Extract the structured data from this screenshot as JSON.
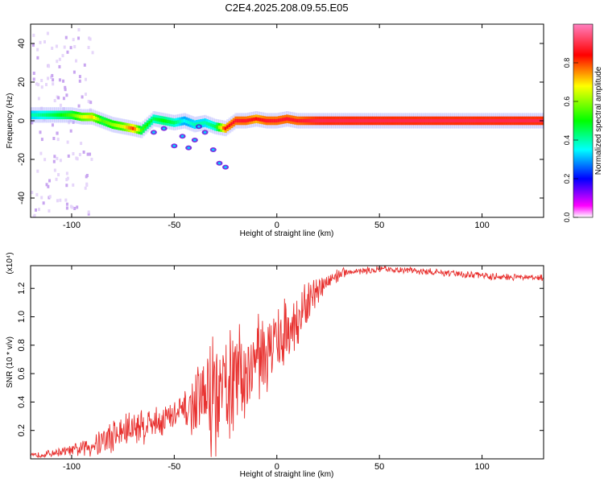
{
  "figure_title": "C2E4.2025.208.09.55.E05",
  "chart_data": [
    {
      "type": "heatmap",
      "xlabel": "Height of straight line (km)",
      "ylabel": "Frequency (Hz)",
      "xlim": [
        -120,
        130
      ],
      "ylim": [
        -50,
        50
      ],
      "x_ticks": [
        -100,
        -50,
        0,
        50,
        100
      ],
      "y_ticks": [
        -40,
        -20,
        0,
        20,
        40
      ],
      "colorbar": {
        "label": "Normalized spectral amplitude",
        "range": [
          0,
          1
        ],
        "ticks": [
          "0.0",
          "0.2",
          "0.4",
          "0.6",
          "0.8"
        ],
        "colors": [
          "#ffffff",
          "#ff00ff",
          "#0000ff",
          "#00ffff",
          "#00ff00",
          "#ffff00",
          "#ff0000",
          "#ff80c0"
        ]
      },
      "ridge": {
        "x": [
          -118,
          -110,
          -100,
          -95,
          -90,
          -85,
          -80,
          -75,
          -70,
          -66,
          -60,
          -55,
          -50,
          -45,
          -40,
          -35,
          -30,
          -25,
          -20,
          -15,
          -10,
          -5,
          0,
          5,
          10,
          20,
          40,
          80,
          130
        ],
        "y": [
          3,
          3,
          3,
          2,
          2,
          0,
          -2,
          -3,
          -4,
          -5,
          1,
          0,
          -1,
          0,
          -2,
          -1,
          -3,
          -4,
          0,
          0,
          1,
          0,
          0,
          1,
          0,
          0,
          0,
          0,
          0
        ],
        "amplitude": [
          0.45,
          0.5,
          0.6,
          0.7,
          0.75,
          0.6,
          0.65,
          0.7,
          0.85,
          0.6,
          0.5,
          0.55,
          0.5,
          0.4,
          0.45,
          0.45,
          0.5,
          0.9,
          0.95,
          0.95,
          0.9,
          0.95,
          0.95,
          0.95,
          0.95,
          1.0,
          1.0,
          1.0,
          1.0
        ]
      }
    },
    {
      "type": "line",
      "xlabel": "Height of straight line (km)",
      "ylabel": "SNR (10 * v/v)",
      "y_multiplier": "(x10⁴)",
      "xlim": [
        -120,
        130
      ],
      "ylim": [
        0,
        13600
      ],
      "x_ticks": [
        -100,
        -50,
        0,
        50,
        100
      ],
      "y_ticks": [
        2000,
        4000,
        6000,
        8000,
        10000,
        12000
      ],
      "y_tick_labels": [
        "0.2",
        "0.4",
        "0.6",
        "0.8",
        "1.0",
        "1.2"
      ],
      "series": [
        {
          "color": "#e8312f",
          "x": [
            -120,
            -110,
            -100,
            -95,
            -90,
            -85,
            -80,
            -75,
            -70,
            -65,
            -60,
            -55,
            -50,
            -45,
            -40,
            -35,
            -30,
            -28,
            -25,
            -20,
            -15,
            -10,
            -5,
            0,
            5,
            10,
            15,
            20,
            25,
            30,
            35,
            40,
            50,
            60,
            70,
            80,
            90,
            100,
            110,
            120,
            130
          ],
          "y_mean": [
            200,
            400,
            600,
            700,
            1000,
            1300,
            1600,
            1900,
            2200,
            2400,
            2600,
            2800,
            3000,
            3300,
            3800,
            4300,
            4600,
            4300,
            5000,
            5700,
            6300,
            7000,
            7600,
            8300,
            9000,
            9800,
            10800,
            11800,
            12500,
            13000,
            13200,
            13200,
            13300,
            13300,
            13200,
            13100,
            13000,
            12900,
            12800,
            12800,
            12700
          ],
          "y_max": [
            400,
            700,
            1000,
            1400,
            2000,
            2700,
            3100,
            3500,
            3800,
            4000,
            3800,
            4200,
            4400,
            4900,
            6100,
            8100,
            10300,
            7500,
            9800,
            9700,
            10200,
            10800,
            11200,
            11600,
            11500,
            12000,
            12600,
            13000,
            13400,
            13600,
            13500,
            13500,
            13600,
            13600,
            13500,
            13400,
            13300,
            13200,
            13100,
            13000,
            13000
          ]
        }
      ]
    }
  ]
}
